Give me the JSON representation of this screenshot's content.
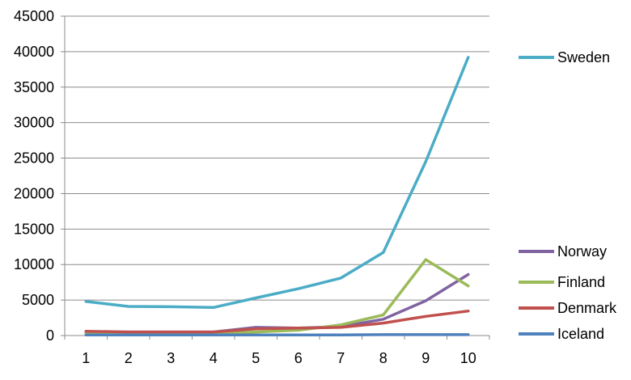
{
  "chart_data": {
    "type": "line",
    "title": "",
    "xlabel": "",
    "ylabel": "",
    "x": [
      1,
      2,
      3,
      4,
      5,
      6,
      7,
      8,
      9,
      10
    ],
    "xlim": [
      1,
      10
    ],
    "ylim": [
      0,
      45000
    ],
    "y_ticks": [
      0,
      5000,
      10000,
      15000,
      20000,
      25000,
      30000,
      35000,
      40000,
      45000
    ],
    "grid": "horizontal",
    "legend_position": "right",
    "series": [
      {
        "name": "Sweden",
        "color": "#4bacc6",
        "values": [
          4800,
          4100,
          4050,
          3950,
          5300,
          6600,
          8100,
          11700,
          24500,
          39200
        ]
      },
      {
        "name": "Norway",
        "color": "#8064a2",
        "values": [
          500,
          500,
          500,
          500,
          1150,
          1050,
          1250,
          2300,
          4900,
          8600
        ]
      },
      {
        "name": "Finland",
        "color": "#9bbb59",
        "values": [
          300,
          300,
          300,
          300,
          500,
          750,
          1500,
          2900,
          10700,
          7000
        ]
      },
      {
        "name": "Denmark",
        "color": "#c0504d",
        "values": [
          600,
          500,
          500,
          500,
          950,
          1050,
          1150,
          1750,
          2700,
          3450
        ]
      },
      {
        "name": "Iceland",
        "color": "#4f81bd",
        "values": [
          80,
          80,
          80,
          80,
          80,
          80,
          80,
          120,
          120,
          120
        ]
      }
    ]
  }
}
